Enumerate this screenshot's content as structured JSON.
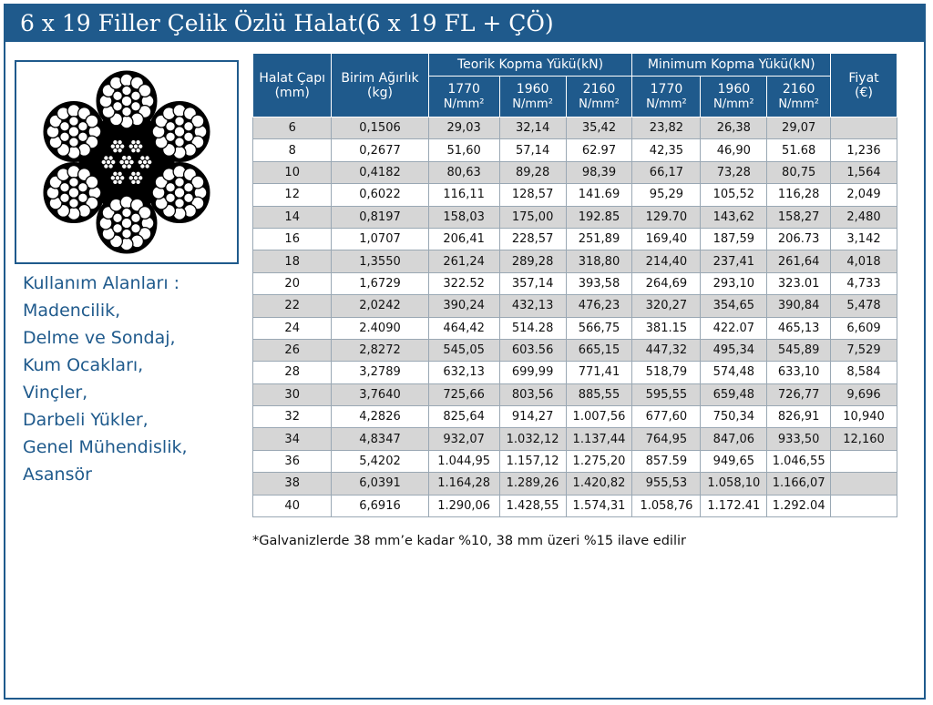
{
  "title": "6 x 19 Filler Çelik Özlü Halat(6 x 19 FL + ÇÖ)",
  "usage": {
    "heading": "Kullanım Alanları :",
    "items": [
      "Madencilik,",
      "Delme ve Sondaj,",
      "Kum Ocakları,",
      "Vinçler,",
      "Darbeli Yükler,",
      "Genel Mühendislik,",
      "Asansör"
    ]
  },
  "table": {
    "col_diameter": [
      "Halat Çapı",
      "(mm)"
    ],
    "col_weight": [
      "Birim Ağırlık",
      "(kg)"
    ],
    "group_theoretical": "Teorik Kopma Yükü(kN)",
    "group_minimum": "Minimum Kopma Yükü(kN)",
    "col_price": [
      "Fiyat",
      "(€)"
    ],
    "grades": [
      "1770",
      "1960",
      "2160",
      "1770",
      "1960",
      "2160"
    ],
    "unit": "N/mm²",
    "rows": [
      [
        "6",
        "0,1506",
        "29,03",
        "32,14",
        "35,42",
        "23,82",
        "26,38",
        "29,07",
        ""
      ],
      [
        "8",
        "0,2677",
        "51,60",
        "57,14",
        "62.97",
        "42,35",
        "46,90",
        "51.68",
        "1,236"
      ],
      [
        "10",
        "0,4182",
        "80,63",
        "89,28",
        "98,39",
        "66,17",
        "73,28",
        "80,75",
        "1,564"
      ],
      [
        "12",
        "0,6022",
        "116,11",
        "128,57",
        "141.69",
        "95,29",
        "105,52",
        "116,28",
        "2,049"
      ],
      [
        "14",
        "0,8197",
        "158,03",
        "175,00",
        "192.85",
        "129.70",
        "143,62",
        "158,27",
        "2,480"
      ],
      [
        "16",
        "1,0707",
        "206,41",
        "228,57",
        "251,89",
        "169,40",
        "187,59",
        "206.73",
        "3,142"
      ],
      [
        "18",
        "1,3550",
        "261,24",
        "289,28",
        "318,80",
        "214,40",
        "237,41",
        "261,64",
        "4,018"
      ],
      [
        "20",
        "1,6729",
        "322.52",
        "357,14",
        "393,58",
        "264,69",
        "293,10",
        "323.01",
        "4,733"
      ],
      [
        "22",
        "2,0242",
        "390,24",
        "432,13",
        "476,23",
        "320,27",
        "354,65",
        "390,84",
        "5,478"
      ],
      [
        "24",
        "2.4090",
        "464,42",
        "514.28",
        "566,75",
        "381.15",
        "422.07",
        "465,13",
        "6,609"
      ],
      [
        "26",
        "2,8272",
        "545,05",
        "603.56",
        "665,15",
        "447,32",
        "495,34",
        "545,89",
        "7,529"
      ],
      [
        "28",
        "3,2789",
        "632,13",
        "699,99",
        "771,41",
        "518,79",
        "574,48",
        "633,10",
        "8,584"
      ],
      [
        "30",
        "3,7640",
        "725,66",
        "803,56",
        "885,55",
        "595,55",
        "659,48",
        "726,77",
        "9,696"
      ],
      [
        "32",
        "4,2826",
        "825,64",
        "914,27",
        "1.007,56",
        "677,60",
        "750,34",
        "826,91",
        "10,940"
      ],
      [
        "34",
        "4,8347",
        "932,07",
        "1.032,12",
        "1.137,44",
        "764,95",
        "847,06",
        "933,50",
        "12,160"
      ],
      [
        "36",
        "5,4202",
        "1.044,95",
        "1.157,12",
        "1.275,20",
        "857.59",
        "949,65",
        "1.046,55",
        ""
      ],
      [
        "38",
        "6,0391",
        "1.164,28",
        "1.289,26",
        "1.420,82",
        "955,53",
        "1.058,10",
        "1.166,07",
        ""
      ],
      [
        "40",
        "6,6916",
        "1.290,06",
        "1.428,55",
        "1.574,31",
        "1.058,76",
        "1.172.41",
        "1.292.04",
        ""
      ]
    ]
  },
  "footnote": "*Galvanizlerde 38 mm’e kadar %10, 38 mm üzeri %15 ilave edilir",
  "colors": {
    "brand_blue": "#1f5a8c",
    "row_gray": "#d6d6d6"
  }
}
